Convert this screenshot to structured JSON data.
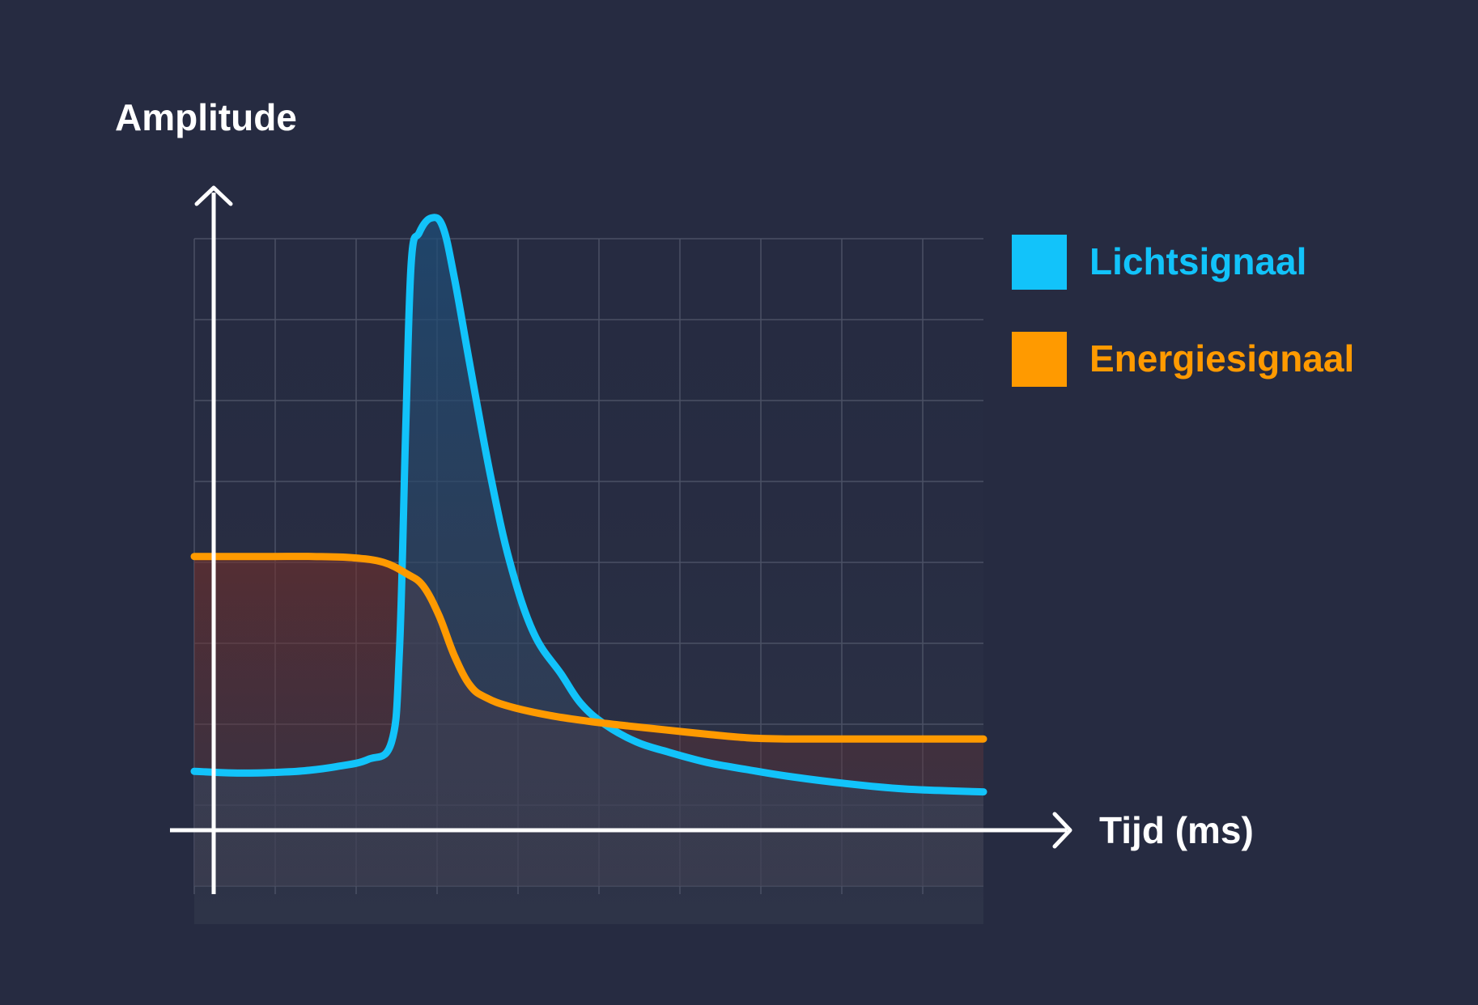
{
  "chart_data": {
    "type": "line",
    "title": "",
    "ylabel": "Amplitude",
    "xlabel": "Tijd (ms)",
    "grid": true,
    "legend_position": "top-right",
    "x_range": [
      0,
      100
    ],
    "y_range": [
      -1,
      10
    ],
    "series": [
      {
        "name": "Lichtsignaal",
        "color": "#12c3fa",
        "fill_color": "#2a5a86",
        "x": [
          0,
          3,
          6,
          10,
          14,
          18,
          22,
          25,
          26,
          26.8,
          27.5,
          28.5,
          30,
          31.5,
          33,
          35,
          37.5,
          40,
          43,
          46.5,
          49,
          52,
          56,
          60,
          65,
          70,
          75,
          82,
          90,
          100
        ],
        "values": [
          0.95,
          0.93,
          0.92,
          0.93,
          0.96,
          1.03,
          1.15,
          1.45,
          3.0,
          6.8,
          9.6,
          10.1,
          10.35,
          10.2,
          9.3,
          7.8,
          6.0,
          4.5,
          3.3,
          2.6,
          2.1,
          1.75,
          1.45,
          1.28,
          1.1,
          0.98,
          0.87,
          0.75,
          0.65,
          0.6
        ]
      },
      {
        "name": "Energiesignaal",
        "color": "#ff9a00",
        "fill_color": "#7a3a25",
        "x": [
          0,
          5,
          10,
          15,
          20,
          24,
          27,
          29,
          31,
          33,
          35,
          37,
          40,
          45,
          50,
          55,
          60,
          65,
          70,
          75,
          80,
          90,
          100
        ],
        "values": [
          4.6,
          4.6,
          4.6,
          4.6,
          4.58,
          4.5,
          4.3,
          4.1,
          3.6,
          2.9,
          2.4,
          2.2,
          2.05,
          1.9,
          1.8,
          1.72,
          1.65,
          1.58,
          1.52,
          1.5,
          1.5,
          1.5,
          1.5
        ]
      }
    ]
  }
}
